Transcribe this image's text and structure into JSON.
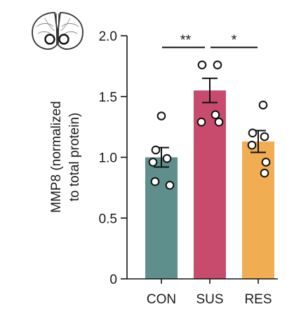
{
  "chart_data": {
    "type": "bar",
    "title": "",
    "xlabel": "",
    "ylabel_line1": "MMP8 (normalized",
    "ylabel_line2": "to total protein)",
    "ylim": [
      0,
      2.0
    ],
    "yticks": [
      0,
      0.5,
      1.0,
      1.5,
      2.0
    ],
    "ytick_labels": [
      "0",
      "0.5",
      "1.0",
      "1.5",
      "2.0"
    ],
    "grid": false,
    "categories": [
      "CON",
      "SUS",
      "RES"
    ],
    "values": [
      1.0,
      1.55,
      1.13
    ],
    "errors": [
      0.08,
      0.1,
      0.09
    ],
    "colors": [
      "#5e8f8c",
      "#c84b6d",
      "#f0ad52"
    ],
    "points": [
      [
        1.34,
        1.06,
        0.99,
        0.96,
        0.8,
        0.77
      ],
      [
        1.76,
        1.76,
        1.35,
        1.29,
        1.29
      ],
      [
        1.43,
        1.2,
        1.17,
        1.1,
        0.96,
        0.87
      ]
    ],
    "significance": [
      {
        "from": 0,
        "to": 1,
        "label": "**",
        "level": 1.95
      },
      {
        "from": 1,
        "to": 2,
        "label": "*",
        "level": 1.95
      }
    ]
  },
  "decoration": {
    "icon": "brain-coronal-section-icon"
  }
}
